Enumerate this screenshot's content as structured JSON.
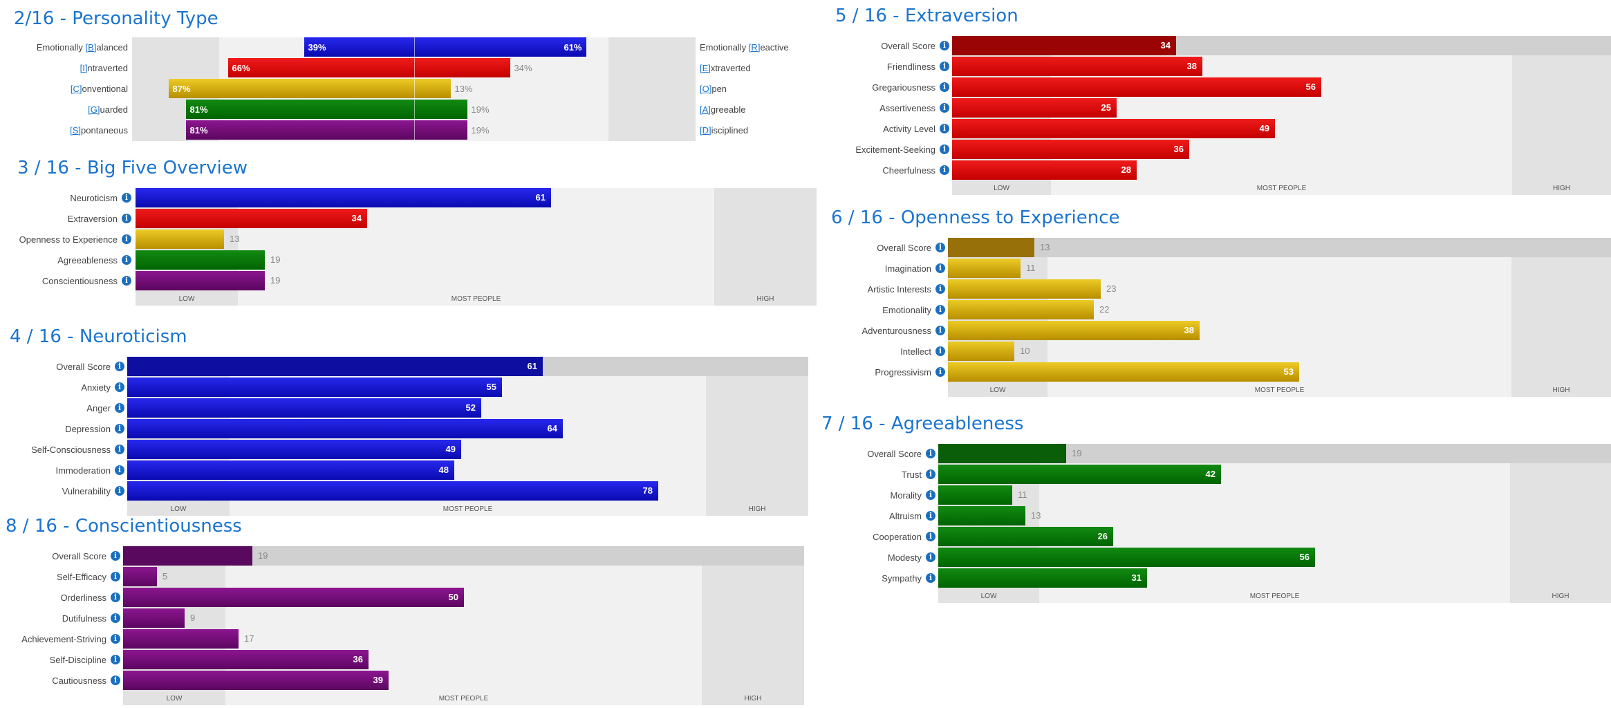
{
  "colors": {
    "blue": [
      "#2828ee",
      "#0a0ab0"
    ],
    "red": [
      "#f01b1b",
      "#c40000"
    ],
    "gold": [
      "#eccb25",
      "#b88e00"
    ],
    "green": [
      "#128a12",
      "#006400"
    ],
    "purple": [
      "#8c1690",
      "#5c0660"
    ],
    "blue_dark": "#0e0ea0",
    "red_dark": "#9b0404",
    "gold_dark": "#98700a",
    "green_dark": "#0a5e0a",
    "purple_dark": "#5a0a5e"
  },
  "band_labels": {
    "low": "LOW",
    "mid": "MOST PEOPLE",
    "high": "HIGH"
  },
  "personality_type": {
    "title": "2/16 - Personality Type",
    "rows": [
      {
        "left_label": "Emotionally [B]alanced",
        "right_label": "Emotionally [R]eactive",
        "left_pct": "39%",
        "right_pct": "61%",
        "color": "blue",
        "side": "right",
        "value": 61
      },
      {
        "left_label": "[I]ntraverted",
        "right_label": "[E]xtraverted",
        "left_pct": "66%",
        "right_pct": "34%",
        "color": "red",
        "side": "left",
        "value": 66
      },
      {
        "left_label": "[C]onventional",
        "right_label": "[O]pen",
        "left_pct": "87%",
        "right_pct": "13%",
        "color": "gold",
        "side": "left",
        "value": 87
      },
      {
        "left_label": "[G]uarded",
        "right_label": "[A]greeable",
        "left_pct": "81%",
        "right_pct": "19%",
        "color": "green",
        "side": "left",
        "value": 81
      },
      {
        "left_label": "[S]pontaneous",
        "right_label": "[D]isciplined",
        "left_pct": "81%",
        "right_pct": "19%",
        "color": "purple",
        "side": "left",
        "value": 81
      }
    ]
  },
  "chart_data": [
    {
      "type": "bar",
      "title": "3 / 16 - Big Five Overview",
      "categories": [
        "Neuroticism",
        "Extraversion",
        "Openness to Experience",
        "Agreeableness",
        "Conscientiousness"
      ],
      "values": [
        61,
        34,
        13,
        19,
        19
      ],
      "colors": [
        "blue",
        "red",
        "gold",
        "green",
        "purple"
      ],
      "overall": false,
      "ylim": [
        0,
        100
      ]
    },
    {
      "type": "bar",
      "title": "4 / 16 - Neuroticism",
      "categories": [
        "Overall Score",
        "Anxiety",
        "Anger",
        "Depression",
        "Self-Consciousness",
        "Immoderation",
        "Vulnerability"
      ],
      "values": [
        61,
        55,
        52,
        64,
        49,
        48,
        78
      ],
      "color": "blue",
      "overall": true,
      "ylim": [
        0,
        100
      ]
    },
    {
      "type": "bar",
      "title": "8 / 16 - Conscientiousness",
      "categories": [
        "Overall Score",
        "Self-Efficacy",
        "Orderliness",
        "Dutifulness",
        "Achievement-Striving",
        "Self-Discipline",
        "Cautiousness"
      ],
      "values": [
        19,
        5,
        50,
        9,
        17,
        36,
        39
      ],
      "color": "purple",
      "overall": true,
      "ylim": [
        0,
        100
      ]
    },
    {
      "type": "bar",
      "title": "5 / 16 - Extraversion",
      "categories": [
        "Overall Score",
        "Friendliness",
        "Gregariousness",
        "Assertiveness",
        "Activity Level",
        "Excitement-Seeking",
        "Cheerfulness"
      ],
      "values": [
        34,
        38,
        56,
        25,
        49,
        36,
        28
      ],
      "color": "red",
      "overall": true,
      "ylim": [
        0,
        100
      ]
    },
    {
      "type": "bar",
      "title": "6 / 16 - Openness to Experience",
      "categories": [
        "Overall Score",
        "Imagination",
        "Artistic Interests",
        "Emotionality",
        "Adventurousness",
        "Intellect",
        "Progressivism"
      ],
      "values": [
        13,
        11,
        23,
        22,
        38,
        10,
        53
      ],
      "color": "gold",
      "overall": true,
      "ylim": [
        0,
        100
      ]
    },
    {
      "type": "bar",
      "title": "7 / 16 - Agreeableness",
      "categories": [
        "Overall Score",
        "Trust",
        "Morality",
        "Altruism",
        "Cooperation",
        "Modesty",
        "Sympathy"
      ],
      "values": [
        19,
        42,
        11,
        13,
        26,
        56,
        31
      ],
      "color": "green",
      "overall": true,
      "ylim": [
        0,
        100
      ]
    }
  ]
}
